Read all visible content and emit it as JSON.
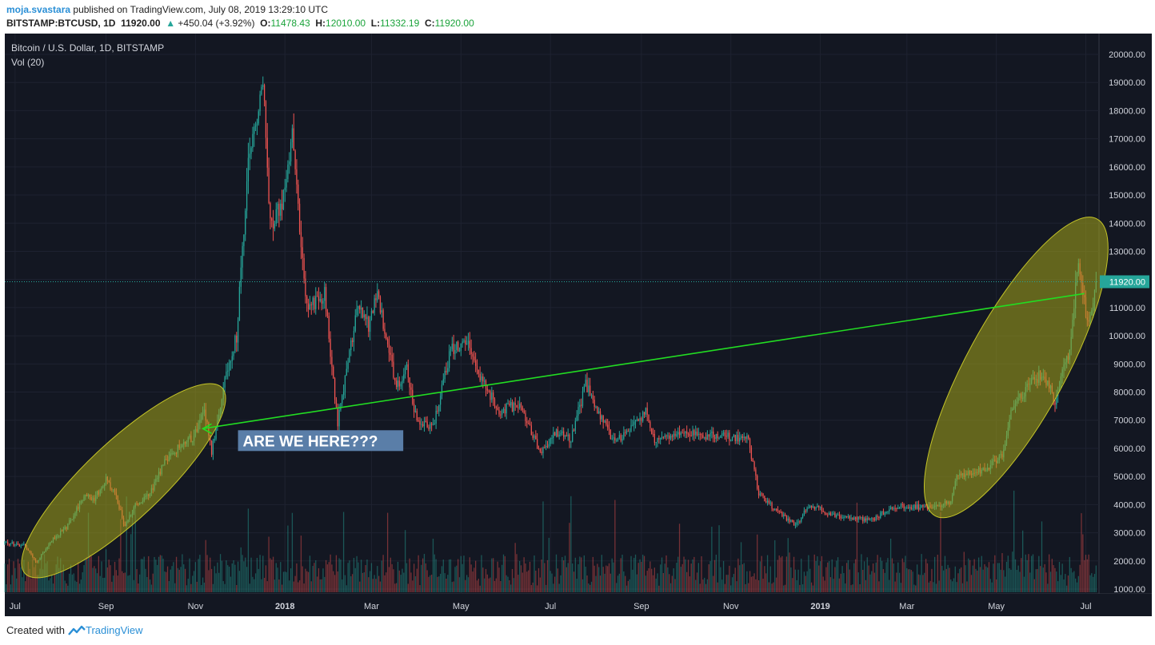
{
  "header": {
    "author": "moja.svastara",
    "published_text": "published on TradingView.com, July 08, 2019 13:29:10 UTC",
    "symbol": "BITSTAMP:BTCUSD, 1D",
    "last": "11920.00",
    "change": "+450.04 (+3.92%)",
    "open_label": "O:",
    "open": "11478.43",
    "high_label": "H:",
    "high": "12010.00",
    "low_label": "L:",
    "low": "11332.19",
    "close_label": "C:",
    "close": "11920.00"
  },
  "legend": {
    "title": "Bitcoin / U.S. Dollar, 1D, BITSTAMP",
    "volume": "Vol (20)"
  },
  "annotation": {
    "text": "ARE WE HERE???"
  },
  "price_tag": "11920.00",
  "footer": {
    "created_with": "Created with",
    "brand": "TradingView"
  },
  "colors": {
    "background": "#131722",
    "up": "#26a69a",
    "down": "#ef5350",
    "trendline": "#22dd22",
    "highlight": "#a6a61a",
    "annotation_bg": "#5a7ea8",
    "price_tag_bg": "#26a69a"
  },
  "chart_data": {
    "type": "candlestick",
    "title": "Bitcoin / U.S. Dollar, 1D, BITSTAMP",
    "y_axis": {
      "ticks": [
        1000,
        2000,
        3000,
        4000,
        5000,
        6000,
        7000,
        8000,
        9000,
        10000,
        11000,
        12000,
        13000,
        14000,
        15000,
        16000,
        17000,
        18000,
        19000,
        20000
      ],
      "tick_labels": [
        "1000.00",
        "2000.00",
        "3000.00",
        "4000.00",
        "5000.00",
        "6000.00",
        "7000.00",
        "8000.00",
        "9000.00",
        "10000.00",
        "11000.00",
        "12000.00",
        "13000.00",
        "14000.00",
        "15000.00",
        "16000.00",
        "17000.00",
        "18000.00",
        "19000.00",
        "20000.00"
      ],
      "range": [
        1000,
        20000
      ]
    },
    "x_axis": {
      "ticks": [
        "Jul",
        "Sep",
        "Nov",
        "2018",
        "Mar",
        "May",
        "Jul",
        "Sep",
        "Nov",
        "2019",
        "Mar",
        "May",
        "Jul"
      ],
      "tick_dates": [
        "2017-07-01",
        "2017-09-01",
        "2017-11-01",
        "2018-01-01",
        "2018-03-01",
        "2018-05-01",
        "2018-07-01",
        "2018-09-01",
        "2018-11-01",
        "2019-01-01",
        "2019-03-01",
        "2019-05-01",
        "2019-07-01"
      ],
      "range": [
        "2017-06-24",
        "2019-07-10"
      ]
    },
    "price_keypoints": [
      [
        "2017-06-24",
        2650
      ],
      [
        "2017-07-07",
        2550
      ],
      [
        "2017-07-16",
        1950
      ],
      [
        "2017-07-25",
        2700
      ],
      [
        "2017-08-05",
        3200
      ],
      [
        "2017-08-17",
        4300
      ],
      [
        "2017-08-24",
        4200
      ],
      [
        "2017-09-01",
        4900
      ],
      [
        "2017-09-08",
        4300
      ],
      [
        "2017-09-14",
        3200
      ],
      [
        "2017-09-20",
        3900
      ],
      [
        "2017-10-01",
        4400
      ],
      [
        "2017-10-12",
        5600
      ],
      [
        "2017-10-20",
        6000
      ],
      [
        "2017-10-31",
        6450
      ],
      [
        "2017-11-07",
        7400
      ],
      [
        "2017-11-12",
        5900
      ],
      [
        "2017-11-20",
        8200
      ],
      [
        "2017-11-29",
        10000
      ],
      [
        "2017-12-07",
        16000
      ],
      [
        "2017-12-17",
        19300
      ],
      [
        "2017-12-22",
        14000
      ],
      [
        "2017-12-29",
        14500
      ],
      [
        "2018-01-06",
        17000
      ],
      [
        "2018-01-16",
        11000
      ],
      [
        "2018-01-28",
        11500
      ],
      [
        "2018-02-06",
        6900
      ],
      [
        "2018-02-20",
        11200
      ],
      [
        "2018-02-27",
        10300
      ],
      [
        "2018-03-05",
        11500
      ],
      [
        "2018-03-18",
        8200
      ],
      [
        "2018-03-25",
        8900
      ],
      [
        "2018-04-01",
        6900
      ],
      [
        "2018-04-12",
        6800
      ],
      [
        "2018-04-24",
        9500
      ],
      [
        "2018-05-05",
        9800
      ],
      [
        "2018-05-15",
        8500
      ],
      [
        "2018-05-27",
        7300
      ],
      [
        "2018-06-10",
        7600
      ],
      [
        "2018-06-24",
        5900
      ],
      [
        "2018-07-05",
        6600
      ],
      [
        "2018-07-15",
        6300
      ],
      [
        "2018-07-25",
        8300
      ],
      [
        "2018-08-05",
        7000
      ],
      [
        "2018-08-14",
        6200
      ],
      [
        "2018-08-25",
        6700
      ],
      [
        "2018-09-04",
        7300
      ],
      [
        "2018-09-10",
        6300
      ],
      [
        "2018-10-01",
        6600
      ],
      [
        "2018-10-15",
        6450
      ],
      [
        "2018-11-01",
        6400
      ],
      [
        "2018-11-13",
        6300
      ],
      [
        "2018-11-20",
        4400
      ],
      [
        "2018-11-30",
        3900
      ],
      [
        "2018-12-15",
        3250
      ],
      [
        "2018-12-25",
        4000
      ],
      [
        "2019-01-10",
        3600
      ],
      [
        "2019-02-05",
        3450
      ],
      [
        "2019-02-20",
        3950
      ],
      [
        "2019-03-15",
        3900
      ],
      [
        "2019-03-31",
        4100
      ],
      [
        "2019-04-03",
        4950
      ],
      [
        "2019-04-25",
        5300
      ],
      [
        "2019-05-05",
        5800
      ],
      [
        "2019-05-12",
        7500
      ],
      [
        "2019-05-20",
        8000
      ],
      [
        "2019-06-01",
        8700
      ],
      [
        "2019-06-10",
        7700
      ],
      [
        "2019-06-20",
        9500
      ],
      [
        "2019-06-26",
        12800
      ],
      [
        "2019-07-02",
        10300
      ],
      [
        "2019-07-08",
        11920
      ]
    ],
    "last_close": 11920.0,
    "trendline": {
      "from": [
        "2017-11-06",
        6700
      ],
      "to": [
        "2019-06-30",
        11500
      ]
    },
    "highlight_ellipses": [
      {
        "from_date": "2017-07-15",
        "to_date": "2017-11-12",
        "low": 1900,
        "high": 7800
      },
      {
        "from_date": "2019-03-25",
        "to_date": "2019-07-04",
        "low": 4050,
        "high": 13700
      }
    ],
    "annotation": {
      "text": "ARE WE HERE???",
      "arrow_to": [
        "2017-11-06",
        6700
      ]
    }
  }
}
